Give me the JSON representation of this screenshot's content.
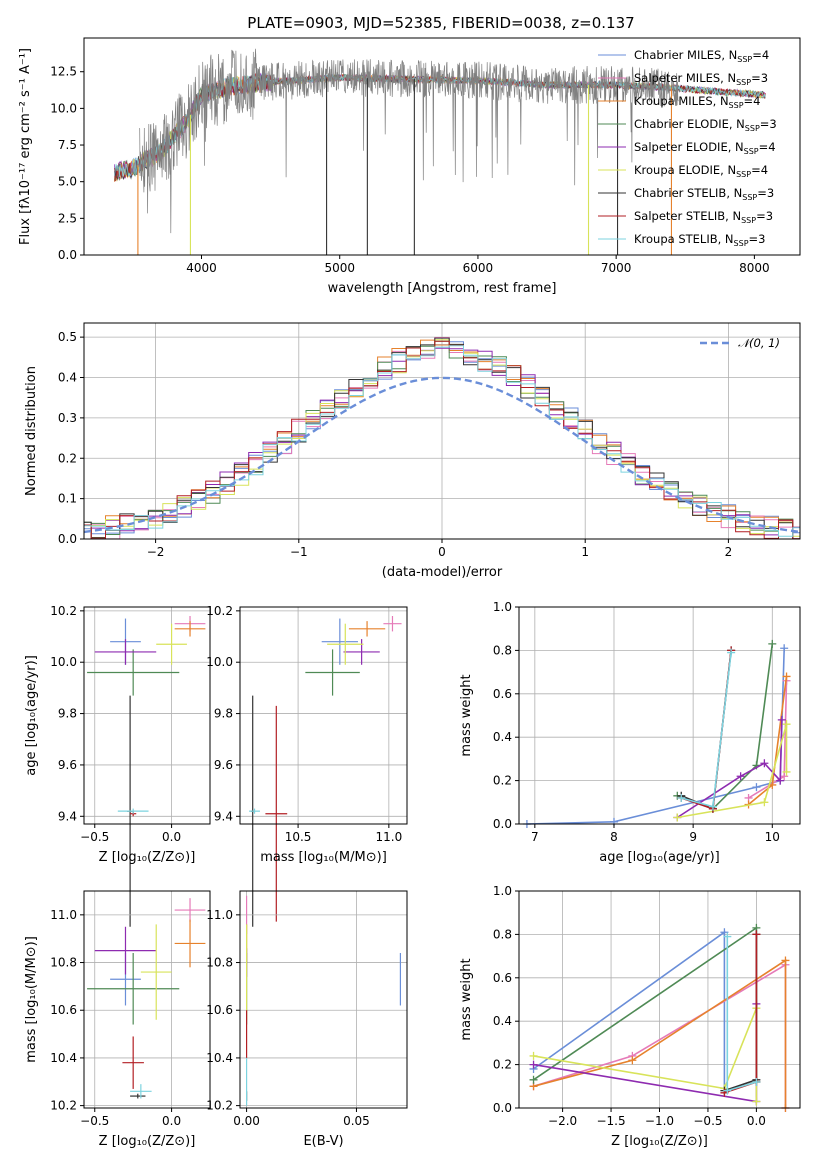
{
  "title": "PLATE=0903, MJD=52385, FIBERID=0038, z=0.137",
  "colors": {
    "chabrier_miles": "#6a8ed8",
    "salpeter_miles": "#e57ab8",
    "kroupa_miles": "#e6822d",
    "chabrier_elodie": "#4f8a55",
    "salpeter_elodie": "#8e2bb0",
    "kroupa_elodie": "#d8e35a",
    "chabrier_stelib": "#333333",
    "salpeter_stelib": "#b21f24",
    "kroupa_stelib": "#7cd3df",
    "data": "#808080",
    "normal": "#6a8ed8"
  },
  "chart_data": [
    {
      "id": "spectrum",
      "type": "line",
      "title": "PLATE=0903, MJD=52385, FIBERID=0038, z=0.137",
      "xlabel": "wavelength [Angstrom, rest frame]",
      "ylabel": "Flux [fλ10⁻¹⁷ erg cm⁻² s⁻¹ A⁻¹]",
      "xlim": [
        3150,
        8330
      ],
      "ylim": [
        0,
        14.8
      ],
      "xticks": [
        "4000",
        "5000",
        "6000",
        "7000",
        "8000"
      ],
      "yticks": [
        "0.0",
        "2.5",
        "5.0",
        "7.5",
        "10.0",
        "12.5"
      ],
      "grid": false,
      "legend_position": "top-right",
      "legend": [
        {
          "label": "Chabrier MILES, N",
          "sub": "SSP",
          "tail": "=4"
        },
        {
          "label": "Salpeter MILES, N",
          "sub": "SSP",
          "tail": "=3"
        },
        {
          "label": "Kroupa MILES, N",
          "sub": "SSP",
          "tail": "=4"
        },
        {
          "label": "Chabrier ELODIE, N",
          "sub": "SSP",
          "tail": "=3"
        },
        {
          "label": "Salpeter ELODIE, N",
          "sub": "SSP",
          "tail": "=4"
        },
        {
          "label": "Kroupa ELODIE, N",
          "sub": "SSP",
          "tail": "=4"
        },
        {
          "label": "Chabrier STELIB, N",
          "sub": "SSP",
          "tail": "=3"
        },
        {
          "label": "Salpeter STELIB, N",
          "sub": "SSP",
          "tail": "=3"
        },
        {
          "label": "Kroupa STELIB, N",
          "sub": "SSP",
          "tail": "=3"
        }
      ],
      "continuum": {
        "x": [
          3350,
          3500,
          3700,
          3900,
          4000,
          4200,
          4500,
          5000,
          5500,
          6000,
          6500,
          7000,
          7400,
          7800,
          8100
        ],
        "y": [
          5.6,
          5.9,
          7.0,
          9.2,
          11.0,
          11.5,
          11.8,
          12.1,
          12.0,
          11.9,
          11.6,
          11.6,
          11.4,
          11.1,
          10.9
        ]
      },
      "drop_lines": [
        {
          "x": 3540,
          "series": "kroupa_miles"
        },
        {
          "x": 3920,
          "series": "kroupa_elodie"
        },
        {
          "x": 4905,
          "series": "chabrier_stelib"
        },
        {
          "x": 5200,
          "series": "chabrier_stelib"
        },
        {
          "x": 5540,
          "series": "chabrier_stelib"
        },
        {
          "x": 6800,
          "series": "kroupa_elodie"
        },
        {
          "x": 7010,
          "series": "chabrier_stelib"
        },
        {
          "x": 7400,
          "series": "kroupa_miles"
        }
      ]
    },
    {
      "id": "residuals",
      "type": "histogram",
      "xlabel": "(data-model)/error",
      "ylabel": "Normed distribution",
      "xlim": [
        -2.5,
        2.5
      ],
      "ylim": [
        0,
        0.535
      ],
      "xticks": [
        "−2",
        "−1",
        "0",
        "1",
        "2"
      ],
      "yticks": [
        "0.0",
        "0.1",
        "0.2",
        "0.3",
        "0.4",
        "0.5"
      ],
      "grid": true,
      "legend": "𝒩(0, 1)",
      "legend_position": "top-right",
      "bin_width": 0.1,
      "n_series": 9
    },
    {
      "id": "age_vs_z",
      "type": "scatter",
      "xlabel": "Z [log₁₀(Z/Z⊙)]",
      "ylabel": "age  [log₁₀(age/yr)]",
      "xlim": [
        -0.57,
        0.25
      ],
      "ylim": [
        9.37,
        10.215
      ],
      "xticks": [
        "−0.5",
        "0.0"
      ],
      "yticks": [
        "9.4",
        "9.6",
        "9.8",
        "10.0",
        "10.2"
      ],
      "grid": true,
      "points": [
        {
          "series": "chabrier_miles",
          "x": -0.3,
          "y": 10.08,
          "xerr": 0.1,
          "yerr": 0.09
        },
        {
          "series": "salpeter_miles",
          "x": 0.12,
          "y": 10.15,
          "xerr": 0.1,
          "yerr": 0.03
        },
        {
          "series": "kroupa_miles",
          "x": 0.12,
          "y": 10.13,
          "xerr": 0.1,
          "yerr": 0.03
        },
        {
          "series": "chabrier_elodie",
          "x": -0.25,
          "y": 9.96,
          "xerr": 0.3,
          "yerr": 0.09
        },
        {
          "series": "salpeter_elodie",
          "x": -0.3,
          "y": 10.04,
          "xerr": 0.2,
          "yerr": 0.05
        },
        {
          "series": "kroupa_elodie",
          "x": 0.0,
          "y": 10.07,
          "xerr": 0.1,
          "yerr": 0.08
        },
        {
          "series": "chabrier_stelib",
          "x": -0.27,
          "y": 9.42,
          "xerr": 0.02,
          "yerr": 0.45
        },
        {
          "series": "salpeter_stelib",
          "x": -0.25,
          "y": 9.41,
          "xerr": 0.02,
          "yerr": 0.01
        },
        {
          "series": "kroupa_stelib",
          "x": -0.25,
          "y": 9.42,
          "xerr": 0.1,
          "yerr": 0.01
        }
      ]
    },
    {
      "id": "age_vs_mass",
      "type": "scatter",
      "xlabel": "mass [log₁₀(M/M⊙)]",
      "ylabel": "",
      "xlim": [
        10.18,
        11.1
      ],
      "ylim": [
        9.37,
        10.215
      ],
      "xticks": [
        "10.5",
        "11.0"
      ],
      "yticks": [
        "9.4",
        "9.6",
        "9.8",
        "10.0",
        "10.2"
      ],
      "grid": true,
      "points": [
        {
          "series": "chabrier_miles",
          "x": 10.73,
          "y": 10.08,
          "xerr": 0.1,
          "yerr": 0.09
        },
        {
          "series": "salpeter_miles",
          "x": 11.02,
          "y": 10.15,
          "xerr": 0.05,
          "yerr": 0.03
        },
        {
          "series": "kroupa_miles",
          "x": 10.88,
          "y": 10.13,
          "xerr": 0.1,
          "yerr": 0.03
        },
        {
          "series": "chabrier_elodie",
          "x": 10.69,
          "y": 9.96,
          "xerr": 0.15,
          "yerr": 0.09
        },
        {
          "series": "salpeter_elodie",
          "x": 10.85,
          "y": 10.04,
          "xerr": 0.1,
          "yerr": 0.05
        },
        {
          "series": "kroupa_elodie",
          "x": 10.76,
          "y": 10.07,
          "xerr": 0.1,
          "yerr": 0.08
        },
        {
          "series": "chabrier_stelib",
          "x": 10.25,
          "y": 9.42,
          "xerr": 0.01,
          "yerr": 0.45
        },
        {
          "series": "salpeter_stelib",
          "x": 10.38,
          "y": 9.41,
          "xerr": 0.06,
          "yerr": 0.42
        },
        {
          "series": "kroupa_stelib",
          "x": 10.26,
          "y": 9.42,
          "xerr": 0.03,
          "yerr": 0.01
        }
      ]
    },
    {
      "id": "mass_weight_vs_age",
      "type": "line",
      "xlabel": "age  [log₁₀(age/yr)]",
      "ylabel": "mass weight",
      "xlim": [
        6.8,
        10.35
      ],
      "ylim": [
        0,
        1.0
      ],
      "xticks": [
        "7",
        "8",
        "9",
        "10"
      ],
      "yticks": [
        "0.0",
        "0.2",
        "0.4",
        "0.6",
        "0.8",
        "1.0"
      ],
      "grid": true,
      "series": [
        {
          "key": "chabrier_miles",
          "x": [
            6.9,
            8.0,
            9.8,
            10.1,
            10.15
          ],
          "y": [
            0.0,
            0.01,
            0.17,
            0.2,
            0.81
          ]
        },
        {
          "key": "salpeter_miles",
          "x": [
            9.7,
            10.15,
            10.18
          ],
          "y": [
            0.12,
            0.22,
            0.66
          ]
        },
        {
          "key": "kroupa_miles",
          "x": [
            9.7,
            10.0,
            10.18
          ],
          "y": [
            0.09,
            0.18,
            0.68
          ]
        },
        {
          "key": "chabrier_elodie",
          "x": [
            8.8,
            9.25,
            9.8,
            10.0
          ],
          "y": [
            0.13,
            0.07,
            0.27,
            0.83
          ]
        },
        {
          "key": "salpeter_elodie",
          "x": [
            8.8,
            9.6,
            9.9,
            10.1,
            10.12
          ],
          "y": [
            0.03,
            0.22,
            0.28,
            0.2,
            0.48
          ]
        },
        {
          "key": "kroupa_elodie",
          "x": [
            8.8,
            9.9,
            10.18,
            10.18
          ],
          "y": [
            0.03,
            0.1,
            0.46,
            0.24
          ]
        },
        {
          "key": "chabrier_stelib",
          "x": [
            8.85,
            9.25,
            9.48
          ],
          "y": [
            0.13,
            0.07,
            0.8
          ]
        },
        {
          "key": "salpeter_stelib",
          "x": [
            8.85,
            9.25,
            9.48
          ],
          "y": [
            0.12,
            0.07,
            0.8
          ]
        },
        {
          "key": "kroupa_stelib",
          "x": [
            8.85,
            9.25,
            9.48
          ],
          "y": [
            0.12,
            0.08,
            0.79
          ]
        }
      ]
    },
    {
      "id": "mass_vs_z",
      "type": "scatter",
      "xlabel": "Z [log₁₀(Z/Z⊙)]",
      "ylabel": "mass [log₁₀(M/M⊙)]",
      "xlim": [
        -0.57,
        0.25
      ],
      "ylim": [
        10.19,
        11.1
      ],
      "xticks": [
        "−0.5",
        "0.0"
      ],
      "yticks": [
        "10.2",
        "10.4",
        "10.6",
        "10.8",
        "11.0"
      ],
      "grid": true,
      "points": [
        {
          "series": "chabrier_miles",
          "x": -0.3,
          "y": 10.73,
          "xerr": 0.1,
          "yerr": 0.11
        },
        {
          "series": "salpeter_miles",
          "x": 0.12,
          "y": 11.02,
          "xerr": 0.1,
          "yerr": 0.05
        },
        {
          "series": "kroupa_miles",
          "x": 0.12,
          "y": 10.88,
          "xerr": 0.1,
          "yerr": 0.1
        },
        {
          "series": "chabrier_elodie",
          "x": -0.25,
          "y": 10.69,
          "xerr": 0.3,
          "yerr": 0.15
        },
        {
          "series": "salpeter_elodie",
          "x": -0.3,
          "y": 10.85,
          "xerr": 0.2,
          "yerr": 0.1
        },
        {
          "series": "kroupa_elodie",
          "x": -0.1,
          "y": 10.76,
          "xerr": 0.1,
          "yerr": 0.2
        },
        {
          "series": "chabrier_stelib",
          "x": -0.22,
          "y": 10.24,
          "xerr": 0.05,
          "yerr": 0.01
        },
        {
          "series": "salpeter_stelib",
          "x": -0.25,
          "y": 10.38,
          "xerr": 0.07,
          "yerr": 0.11
        },
        {
          "series": "kroupa_stelib",
          "x": -0.2,
          "y": 10.26,
          "xerr": 0.07,
          "yerr": 0.03
        }
      ]
    },
    {
      "id": "mass_vs_ebv",
      "type": "scatter",
      "xlabel": "E(B-V)",
      "ylabel": "",
      "xlim": [
        -0.003,
        0.073
      ],
      "ylim": [
        10.19,
        11.1
      ],
      "xticks": [
        "0.00",
        "0.05"
      ],
      "yticks": [
        "10.2",
        "10.4",
        "10.6",
        "10.8",
        "11.0"
      ],
      "grid": true,
      "points": [
        {
          "series": "chabrier_miles",
          "x": 0.07,
          "y": 10.73,
          "xerr": 0.0,
          "yerr": 0.11
        },
        {
          "series": "salpeter_miles",
          "x": 0.0,
          "y": 11.0,
          "xerr": 0.0,
          "yerr": 0.08
        },
        {
          "series": "kroupa_miles",
          "x": 0.0,
          "y": 10.88,
          "xerr": 0.0,
          "yerr": 0.08
        },
        {
          "series": "chabrier_elodie",
          "x": 0.0,
          "y": 10.69,
          "xerr": 0.0,
          "yerr": 0.15
        },
        {
          "series": "salpeter_elodie",
          "x": 0.0,
          "y": 10.8,
          "xerr": 0.0,
          "yerr": 0.06
        },
        {
          "series": "kroupa_elodie",
          "x": 0.0,
          "y": 10.76,
          "xerr": 0.0,
          "yerr": 0.2
        },
        {
          "series": "chabrier_stelib",
          "x": 0.0,
          "y": 10.24,
          "xerr": 0.0,
          "yerr": 0.02
        },
        {
          "series": "salpeter_stelib",
          "x": 0.0,
          "y": 10.5,
          "xerr": 0.0,
          "yerr": 0.1
        },
        {
          "series": "kroupa_stelib",
          "x": 0.0,
          "y": 10.3,
          "xerr": 0.0,
          "yerr": 0.1
        }
      ]
    },
    {
      "id": "mass_weight_vs_z",
      "type": "line",
      "xlabel": "Z [log₁₀(Z/Z⊙)]",
      "ylabel": "mass weight",
      "xlim": [
        -2.45,
        0.45
      ],
      "ylim": [
        0,
        1.0
      ],
      "xticks": [
        "−2.0",
        "−1.5",
        "−1.0",
        "−0.5",
        "0.0"
      ],
      "yticks": [
        "0.0",
        "0.2",
        "0.4",
        "0.6",
        "0.8",
        "1.0"
      ],
      "grid": true,
      "series": [
        {
          "key": "chabrier_miles",
          "x": [
            -2.3,
            -0.33,
            -0.33
          ],
          "y": [
            0.18,
            0.81,
            0.08
          ]
        },
        {
          "key": "salpeter_miles",
          "x": [
            -2.3,
            -1.28,
            0.3,
            0.3
          ],
          "y": [
            0.1,
            0.24,
            0.66,
            0.0
          ]
        },
        {
          "key": "kroupa_miles",
          "x": [
            -2.3,
            -1.28,
            0.3,
            0.3
          ],
          "y": [
            0.1,
            0.22,
            0.68,
            0.0
          ]
        },
        {
          "key": "chabrier_elodie",
          "x": [
            -2.3,
            0.0,
            0.0
          ],
          "y": [
            0.13,
            0.83,
            0.12
          ]
        },
        {
          "key": "salpeter_elodie",
          "x": [
            -2.3,
            0.0,
            0.0
          ],
          "y": [
            0.2,
            0.03,
            0.48
          ]
        },
        {
          "key": "kroupa_elodie",
          "x": [
            -2.3,
            -0.33,
            0.0,
            0.0
          ],
          "y": [
            0.24,
            0.09,
            0.46,
            0.03
          ]
        },
        {
          "key": "chabrier_stelib",
          "x": [
            -0.33,
            0.0,
            0.0
          ],
          "y": [
            0.08,
            0.13,
            0.8
          ]
        },
        {
          "key": "salpeter_stelib",
          "x": [
            -0.33,
            0.0,
            0.0
          ],
          "y": [
            0.07,
            0.12,
            0.8
          ]
        },
        {
          "key": "kroupa_stelib",
          "x": [
            -0.3,
            -0.3,
            0.0
          ],
          "y": [
            0.79,
            0.08,
            0.12
          ]
        }
      ]
    }
  ]
}
